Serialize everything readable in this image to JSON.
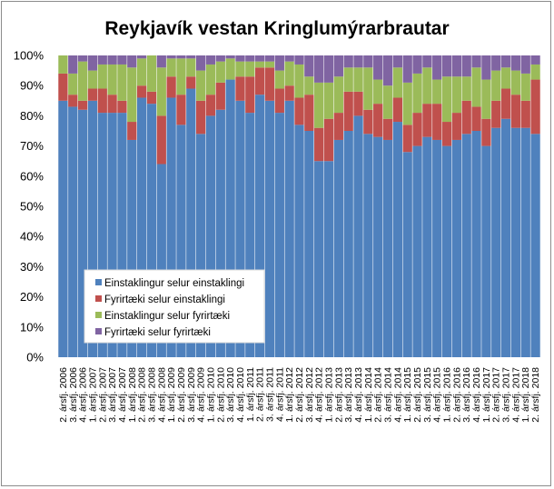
{
  "chart_data": {
    "type": "bar",
    "stacked": true,
    "percent_stacked": true,
    "title": "Reykjavík vestan Kringlumýrarbrautar",
    "xlabel": "",
    "ylabel": "",
    "ylim": [
      0,
      1
    ],
    "yticks": [
      "0%",
      "10%",
      "20%",
      "30%",
      "40%",
      "50%",
      "60%",
      "70%",
      "80%",
      "90%",
      "100%"
    ],
    "grid": false,
    "legend_position": "bottom-left-inside",
    "categories": [
      "2. ársfj. 2006",
      "3. ársfj. 2006",
      "4. ársfj. 2006",
      "1. ársfj. 2007",
      "2. ársfj. 2007",
      "3. ársfj. 2007",
      "4. ársfj. 2007",
      "1. ársfj. 2008",
      "2. ársfj. 2008",
      "3. ársfj. 2008",
      "4. ársfj. 2008",
      "1. ársfj. 2009",
      "2. ársfj. 2009",
      "3. ársfj. 2009",
      "4. ársfj. 2009",
      "1. ársfj. 2010",
      "2. ársfj. 2010",
      "3. ársfj. 2010",
      "4. ársfj. 2010",
      "1. ársfj. 2011",
      "2. ársfj. 2011",
      "3. ársfj. 2011",
      "4. ársfj. 2011",
      "1. ársfj. 2012",
      "2. ársfj. 2012",
      "3. ársfj. 2012",
      "4. ársfj. 2012",
      "1. ársfj. 2013",
      "2. ársfj. 2013",
      "3. ársfj. 2013",
      "4. ársfj. 2013",
      "1. ársfj. 2014",
      "2. ársfj. 2014",
      "3. ársfj. 2014",
      "4. ársfj. 2014",
      "1. ársfj. 2015",
      "2. ársfj. 2015",
      "3. ársfj. 2015",
      "4. ársfj. 2015",
      "1. ársfj. 2016",
      "2. ársfj. 2016",
      "3. ársfj. 2016",
      "4. ársfj. 2016",
      "1. ársfj. 2017",
      "2. ársfj. 2017",
      "3. ársfj. 2017",
      "4. ársfj. 2017",
      "1. ársfj. 2018",
      "2. ársfj. 2018"
    ],
    "x_tick_labels": [
      "2. ársfj. 2006",
      "3. ársfj. 2006",
      "4. ársfj. 2006",
      "1. ársfj. 2007",
      "2. ársfj. 2007",
      "3. ársfj. 2007",
      "4. ársfj. 2007",
      "1. ársfj. 2008",
      "2. ársfj. 2008",
      "3. ársfj. 2008",
      "4. ársfj. 2008",
      "1. ársfj. 2009",
      "2. ársfj. 2009",
      "3. ársfj. 2009",
      "4. ársfj. 2009",
      "1. ársfj. 2010",
      "2. ársfj. 2010",
      "3. ársfj. 2010",
      "4. ársfj. 2010",
      "1. ársfj. 2011",
      "2. ársfj. 2011",
      "3. ársfj. 2011",
      "4. ársfj. 2011",
      "1. ársfj. 2012",
      "2. ársfj. 2012",
      "3. ársfj. 2012",
      "4. ársfj. 2012",
      "1. ársfj. 2013",
      "2. ársfj. 2013",
      "3. ársfj. 2013",
      "4. ársfj. 2013",
      "1. ársfj. 2014",
      "2. ársfj. 2014",
      "3. ársfj. 2014",
      "4. ársfj. 2014",
      "1. ársfj. 2015",
      "2. ársfj. 2015",
      "3. ársfj. 2015",
      "4. ársfj. 2015",
      "1. ársfj. 2016",
      "2. ársfj. 2016",
      "3. ársfj. 2016",
      "4. ársfj. 2016",
      "1. ársfj. 2017",
      "2. ársfj. 2017",
      "3. ársfj. 2017",
      "4. ársfj. 2017",
      "1. ársfj. 2018",
      "2. ársfj. 2018"
    ],
    "series": [
      {
        "name": "Einstaklingur selur einstaklingi",
        "color": "#4f81bd",
        "values": [
          0.85,
          0.83,
          0.82,
          0.85,
          0.81,
          0.81,
          0.81,
          0.72,
          0.86,
          0.84,
          0.64,
          0.86,
          0.77,
          0.89,
          0.74,
          0.8,
          0.82,
          0.92,
          0.85,
          0.81,
          0.87,
          0.85,
          0.81,
          0.85,
          0.77,
          0.75,
          0.65,
          0.65,
          0.72,
          0.75,
          0.8,
          0.74,
          0.73,
          0.72,
          0.78,
          0.68,
          0.7,
          0.73,
          0.72,
          0.7,
          0.72,
          0.74,
          0.75,
          0.7,
          0.76,
          0.79,
          0.76,
          0.76,
          0.74
        ]
      },
      {
        "name": "Fyrirtæki selur einstaklingi",
        "color": "#c0504d",
        "values": [
          0.09,
          0.04,
          0.03,
          0.04,
          0.08,
          0.06,
          0.04,
          0.06,
          0.04,
          0.04,
          0.16,
          0.07,
          0.1,
          0.04,
          0.11,
          0.07,
          0.09,
          0.0,
          0.08,
          0.12,
          0.09,
          0.11,
          0.08,
          0.05,
          0.09,
          0.12,
          0.11,
          0.14,
          0.09,
          0.13,
          0.08,
          0.08,
          0.11,
          0.07,
          0.08,
          0.09,
          0.11,
          0.11,
          0.12,
          0.08,
          0.09,
          0.11,
          0.08,
          0.09,
          0.09,
          0.1,
          0.11,
          0.09,
          0.18
        ]
      },
      {
        "name": "Einstaklingur selur fyrirtæki",
        "color": "#9bbb59",
        "values": [
          0.06,
          0.07,
          0.13,
          0.06,
          0.08,
          0.1,
          0.12,
          0.18,
          0.09,
          0.12,
          0.16,
          0.06,
          0.12,
          0.06,
          0.1,
          0.1,
          0.07,
          0.07,
          0.05,
          0.05,
          0.02,
          0.02,
          0.06,
          0.08,
          0.11,
          0.06,
          0.15,
          0.12,
          0.12,
          0.08,
          0.08,
          0.14,
          0.08,
          0.11,
          0.1,
          0.14,
          0.13,
          0.12,
          0.08,
          0.15,
          0.12,
          0.08,
          0.13,
          0.13,
          0.1,
          0.07,
          0.08,
          0.09,
          0.05
        ]
      },
      {
        "name": "Fyrirtæki selur fyrirtæki",
        "color": "#8064a2",
        "values": [
          0.0,
          0.06,
          0.02,
          0.05,
          0.03,
          0.03,
          0.03,
          0.04,
          0.01,
          0.0,
          0.04,
          0.01,
          0.01,
          0.01,
          0.05,
          0.03,
          0.02,
          0.01,
          0.02,
          0.02,
          0.02,
          0.02,
          0.05,
          0.02,
          0.03,
          0.07,
          0.09,
          0.09,
          0.07,
          0.04,
          0.04,
          0.04,
          0.08,
          0.1,
          0.04,
          0.09,
          0.06,
          0.04,
          0.08,
          0.07,
          0.07,
          0.07,
          0.04,
          0.08,
          0.05,
          0.04,
          0.05,
          0.06,
          0.03
        ]
      }
    ]
  }
}
